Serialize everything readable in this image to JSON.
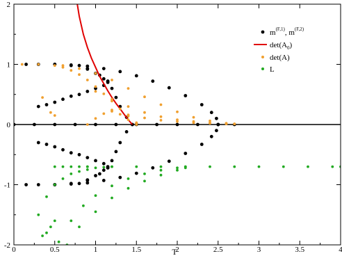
{
  "chart_data": {
    "type": "scatter",
    "title": "",
    "xlabel": "T",
    "ylabel": "",
    "xlim": [
      0,
      4
    ],
    "ylim": [
      -2,
      2
    ],
    "x_ticks": [
      "0",
      "0.5",
      "1",
      "1.5",
      "2",
      "2.5",
      "3",
      "3.5",
      "4"
    ],
    "y_ticks": [
      "2",
      "1",
      "0",
      "-1",
      "-2"
    ],
    "x_tick_values": [
      0,
      0.5,
      1,
      1.5,
      2,
      2.5,
      3,
      3.5,
      4
    ],
    "y_tick_values": [
      2,
      1,
      0,
      -1,
      -2
    ],
    "grid": false,
    "legend_position": "top-right",
    "legend": [
      {
        "label_main": "m",
        "sup1": "(F,1)",
        "label_mid": ", m",
        "sup2": "(F,2)"
      },
      {
        "label": "det(A",
        "sub": "0",
        "label_end": ")"
      },
      {
        "label": "det(A)"
      },
      {
        "label": "L"
      }
    ],
    "colors": {
      "m": "#000000",
      "detA0": "#e00000",
      "detA": "#f0a030",
      "L": "#22aa22"
    },
    "series": [
      {
        "key": "m",
        "style": "points",
        "branches": [
          {
            "x": [
              0.15,
              0.3,
              0.5,
              0.7,
              0.9,
              1.1,
              1.3,
              1.5,
              1.7,
              1.9,
              2.1,
              2.3,
              2.42,
              2.48,
              2.5
            ],
            "y": [
              1.0,
              1.0,
              1.0,
              0.99,
              0.97,
              0.93,
              0.88,
              0.81,
              0.72,
              0.61,
              0.48,
              0.33,
              0.2,
              0.1,
              0.0
            ]
          },
          {
            "x": [
              0.15,
              0.3,
              0.5,
              0.7,
              0.9,
              1.1,
              1.3,
              1.5,
              1.7,
              1.9,
              2.1,
              2.3,
              2.42,
              2.48,
              2.5
            ],
            "y": [
              -1.0,
              -1.0,
              -1.0,
              -0.99,
              -0.97,
              -0.93,
              -0.88,
              -0.81,
              -0.72,
              -0.61,
              -0.48,
              -0.33,
              -0.2,
              -0.1,
              0.0
            ]
          },
          {
            "x": [
              0.5,
              0.7,
              0.9,
              1.05,
              1.15,
              1.2,
              1.25,
              1.3,
              1.38,
              1.45
            ],
            "y": [
              1.0,
              0.98,
              0.92,
              0.82,
              0.72,
              0.6,
              0.45,
              0.3,
              0.12,
              0.0
            ]
          },
          {
            "x": [
              0.5,
              0.7,
              0.9,
              1.05,
              1.15,
              1.2,
              1.25,
              1.3,
              1.38,
              1.45
            ],
            "y": [
              -1.0,
              -0.98,
              -0.92,
              -0.82,
              -0.72,
              -0.6,
              -0.45,
              -0.3,
              -0.12,
              0.0
            ]
          },
          {
            "x": [
              0.8,
              0.9,
              1.0,
              1.1,
              1.15
            ],
            "y": [
              0.98,
              0.93,
              0.85,
              0.76,
              0.72
            ]
          },
          {
            "x": [
              0.8,
              0.9,
              1.0,
              1.1,
              1.15
            ],
            "y": [
              -0.98,
              -0.93,
              -0.85,
              -0.76,
              -0.72
            ]
          },
          {
            "x": [
              0.3,
              0.4,
              0.5,
              0.6,
              0.7,
              0.8,
              0.9,
              1.0,
              1.1,
              1.15
            ],
            "y": [
              -0.3,
              -0.33,
              -0.37,
              -0.42,
              -0.47,
              -0.5,
              -0.55,
              -0.6,
              -0.65,
              -0.7
            ]
          },
          {
            "x": [
              0.3,
              0.4,
              0.5,
              0.6,
              0.7,
              0.8,
              0.9,
              1.0,
              1.1,
              1.15
            ],
            "y": [
              0.3,
              0.33,
              0.37,
              0.42,
              0.47,
              0.5,
              0.55,
              0.6,
              0.65,
              0.7
            ]
          },
          {
            "x": [
              0.0,
              0.25,
              0.5,
              0.75,
              1.0,
              1.25,
              1.5,
              1.75,
              2.0,
              2.25,
              2.5,
              2.7
            ],
            "y": [
              0,
              0,
              0,
              0,
              0,
              0,
              0,
              0,
              0,
              0,
              0,
              0
            ]
          }
        ]
      },
      {
        "key": "detA0",
        "style": "line",
        "x": [
          0.77,
          0.8,
          0.85,
          0.9,
          0.95,
          1.0,
          1.05,
          1.1,
          1.15,
          1.2,
          1.25,
          1.3,
          1.35,
          1.4,
          1.45
        ],
        "y": [
          2.05,
          1.8,
          1.5,
          1.28,
          1.1,
          0.95,
          0.8,
          0.68,
          0.56,
          0.45,
          0.35,
          0.26,
          0.17,
          0.08,
          0.0
        ]
      },
      {
        "key": "detA",
        "style": "points",
        "branches": [
          {
            "x": [
              0.1,
              0.3,
              0.5,
              0.6,
              0.7,
              0.8,
              0.9,
              1.0,
              1.1,
              1.2,
              1.3,
              1.4,
              1.5
            ],
            "y": [
              1.0,
              1.0,
              0.98,
              0.95,
              0.9,
              0.83,
              0.74,
              0.63,
              0.51,
              0.39,
              0.26,
              0.14,
              0.03
            ]
          },
          {
            "x": [
              0.6,
              0.8,
              1.0,
              1.2,
              1.4,
              1.6,
              1.8,
              2.0,
              2.2,
              2.4,
              2.6,
              2.7
            ],
            "y": [
              0.98,
              0.93,
              0.85,
              0.74,
              0.6,
              0.46,
              0.33,
              0.21,
              0.12,
              0.06,
              0.02,
              0.01
            ]
          },
          {
            "x": [
              0.9,
              1.0,
              1.1,
              1.2,
              1.3,
              1.4,
              1.5
            ],
            "y": [
              0.0,
              0.1,
              0.18,
              0.24,
              0.17,
              0.08,
              0.0
            ]
          },
          {
            "x": [
              1.0,
              1.2,
              1.4,
              1.6,
              1.8,
              2.0,
              2.2,
              2.4,
              2.6,
              2.7
            ],
            "y": [
              0.55,
              0.42,
              0.3,
              0.2,
              0.13,
              0.08,
              0.05,
              0.03,
              0.02,
              0.01
            ]
          },
          {
            "x": [
              1.2,
              1.4,
              1.6,
              1.8,
              2.0,
              2.2,
              2.4,
              2.6,
              2.7
            ],
            "y": [
              0.22,
              0.16,
              0.11,
              0.07,
              0.05,
              0.03,
              0.02,
              0.01,
              0.01
            ]
          },
          {
            "x": [
              0.35,
              0.45,
              0.5
            ],
            "y": [
              0.45,
              0.2,
              0.15
            ]
          }
        ]
      },
      {
        "key": "L",
        "style": "points",
        "branches": [
          {
            "x": [
              0.9,
              1.2,
              1.5,
              1.8,
              2.1,
              2.4,
              2.7,
              3.0,
              3.3,
              3.6,
              3.9,
              4.0
            ],
            "y": [
              -0.7,
              -0.7,
              -0.7,
              -0.7,
              -0.7,
              -0.7,
              -0.7,
              -0.7,
              -0.7,
              -0.7,
              -0.7,
              -0.7
            ]
          },
          {
            "x": [
              0.55,
              0.7,
              0.85,
              1.0,
              1.2,
              1.4,
              1.6,
              1.8,
              2.0,
              2.1
            ],
            "y": [
              -1.95,
              -1.6,
              -1.35,
              -1.18,
              -1.02,
              -0.9,
              -0.82,
              -0.76,
              -0.72,
              -0.7
            ]
          },
          {
            "x": [
              0.65,
              0.8,
              1.0,
              1.2,
              1.4,
              1.6,
              1.8,
              2.0,
              2.1
            ],
            "y": [
              -2.0,
              -1.7,
              -1.45,
              -1.22,
              -1.06,
              -0.94,
              -0.84,
              -0.76,
              -0.72
            ]
          },
          {
            "x": [
              0.3,
              0.4,
              0.5,
              0.6,
              0.7,
              0.8,
              0.9,
              1.0,
              1.1,
              1.2
            ],
            "y": [
              -1.5,
              -1.2,
              -1.0,
              -0.9,
              -0.82,
              -0.78,
              -0.75,
              -0.72,
              -0.71,
              -0.7
            ]
          },
          {
            "x": [
              0.35,
              0.4,
              0.45,
              0.5
            ],
            "y": [
              -1.85,
              -1.8,
              -1.7,
              -1.6
            ]
          },
          {
            "x": [
              0.5,
              0.6,
              0.7,
              0.8,
              0.9
            ],
            "y": [
              -0.7,
              -0.7,
              -0.7,
              -0.7,
              -0.7
            ]
          }
        ]
      }
    ]
  }
}
